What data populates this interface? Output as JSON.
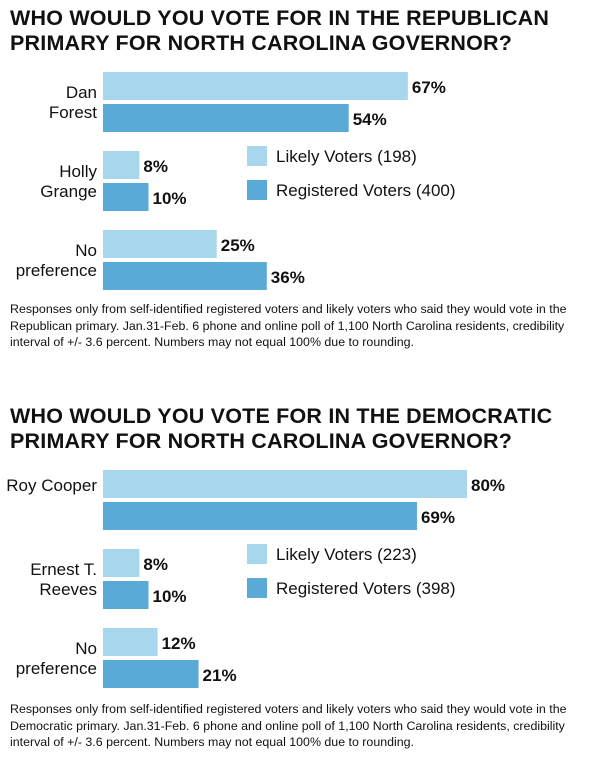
{
  "colors": {
    "likely": "#a8d6ec",
    "registered": "#5aaad7"
  },
  "panels": [
    {
      "title": "WHO WOULD YOU VOTE FOR IN THE REPUBLICAN PRIMARY FOR NORTH CAROLINA GOVERNOR?",
      "note": "Responses only from self-identified registered voters and likely voters who said they would vote in the Republican primary. Jan.31-Feb. 6 phone and online poll of 1,100 North Carolina residents, credibility interval of +/- 3.6 percent. Numbers may not equal 100% due to rounding."
    },
    {
      "title": "WHO WOULD YOU VOTE FOR IN THE DEMOCRATIC PRIMARY FOR NORTH CAROLINA GOVERNOR?",
      "note": "Responses only from self-identified registered voters and likely voters who said they would vote in the Democratic primary. Jan.31-Feb. 6 phone and online poll of 1,100 North Carolina residents, credibility interval of +/- 3.6 percent. Numbers may not equal 100% due to rounding."
    }
  ],
  "chart_data": [
    {
      "type": "bar",
      "orientation": "horizontal",
      "title": "WHO WOULD YOU VOTE FOR IN THE REPUBLICAN PRIMARY FOR NORTH CAROLINA GOVERNOR?",
      "categories": [
        [
          "Dan",
          "Forest"
        ],
        [
          "Holly",
          "Grange"
        ],
        [
          "No",
          "preference"
        ]
      ],
      "series": [
        {
          "name": "Likely Voters (198)",
          "values": [
            67,
            8,
            25
          ],
          "labels": [
            "67%",
            "8%",
            "25%"
          ]
        },
        {
          "name": "Registered Voters (400)",
          "values": [
            54,
            10,
            36
          ],
          "labels": [
            "54%",
            "10%",
            "36%"
          ]
        }
      ],
      "xlim": [
        0,
        100
      ],
      "grid": false,
      "legend_position": "middle-right"
    },
    {
      "type": "bar",
      "orientation": "horizontal",
      "title": "WHO WOULD YOU VOTE FOR IN THE DEMOCRATIC PRIMARY FOR NORTH CAROLINA GOVERNOR?",
      "categories": [
        [
          "Roy Cooper"
        ],
        [
          "Ernest T.",
          "Reeves"
        ],
        [
          "No",
          "preference"
        ]
      ],
      "series": [
        {
          "name": "Likely Voters (223)",
          "values": [
            80,
            8,
            12
          ],
          "labels": [
            "80%",
            "8%",
            "12%"
          ]
        },
        {
          "name": "Registered Voters (398)",
          "values": [
            69,
            10,
            21
          ],
          "labels": [
            "69%",
            "10%",
            "21%"
          ]
        }
      ],
      "xlim": [
        0,
        100
      ],
      "grid": false,
      "legend_position": "middle-right"
    }
  ]
}
